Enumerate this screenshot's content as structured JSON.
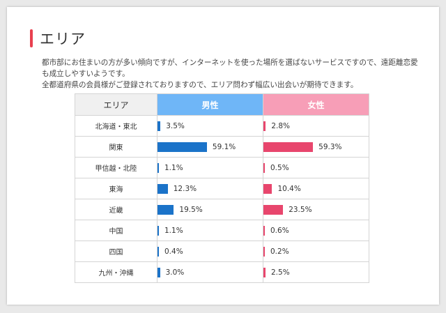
{
  "heading": {
    "title": "エリア"
  },
  "description": {
    "line1": "都市部にお住まいの方が多い傾向ですが、インターネットを使った場所を選ばないサービスですので、遠距離恋愛も成立しやすいようです。",
    "line2": "全都道府県の会員様がご登録されておりますので、エリア問わず幅広い出会いが期待できます。"
  },
  "table": {
    "headers": {
      "area": "エリア",
      "male": "男性",
      "female": "女性"
    },
    "rows": [
      {
        "area": "北海道・東北",
        "male": 3.5,
        "male_label": "3.5%",
        "female": 2.8,
        "female_label": "2.8%"
      },
      {
        "area": "関東",
        "male": 59.1,
        "male_label": "59.1%",
        "female": 59.3,
        "female_label": "59.3%"
      },
      {
        "area": "甲信越・北陸",
        "male": 1.1,
        "male_label": "1.1%",
        "female": 0.5,
        "female_label": "0.5%"
      },
      {
        "area": "東海",
        "male": 12.3,
        "male_label": "12.3%",
        "female": 10.4,
        "female_label": "10.4%"
      },
      {
        "area": "近畿",
        "male": 19.5,
        "male_label": "19.5%",
        "female": 23.5,
        "female_label": "23.5%"
      },
      {
        "area": "中国",
        "male": 1.1,
        "male_label": "1.1%",
        "female": 0.6,
        "female_label": "0.6%"
      },
      {
        "area": "四国",
        "male": 0.4,
        "male_label": "0.4%",
        "female": 0.2,
        "female_label": "0.2%"
      },
      {
        "area": "九州・沖縄",
        "male": 3.0,
        "male_label": "3.0%",
        "female": 2.5,
        "female_label": "2.5%"
      }
    ]
  },
  "colors": {
    "male_bar": "#1b73c9",
    "female_bar": "#e8466d",
    "male_header": "#6fb6f7",
    "female_header": "#f79eb7",
    "accent": "#e8404f"
  }
}
